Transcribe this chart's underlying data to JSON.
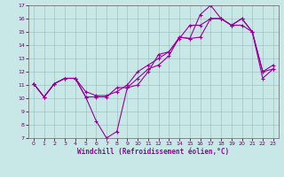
{
  "xlabel": "Windchill (Refroidissement éolien,°C)",
  "bg_color": "#c8e8e8",
  "line_color": "#990099",
  "xlim": [
    -0.5,
    23.5
  ],
  "ylim": [
    7,
    17
  ],
  "yticks": [
    7,
    8,
    9,
    10,
    11,
    12,
    13,
    14,
    15,
    16,
    17
  ],
  "xticks": [
    0,
    1,
    2,
    3,
    4,
    5,
    6,
    7,
    8,
    9,
    10,
    11,
    12,
    13,
    14,
    15,
    16,
    17,
    18,
    19,
    20,
    21,
    22,
    23
  ],
  "series": [
    {
      "x": [
        0,
        1,
        2,
        3,
        4,
        5,
        6,
        7,
        8,
        9,
        10,
        11,
        12,
        13,
        14,
        15,
        16,
        17,
        18,
        19,
        20,
        21,
        22,
        23
      ],
      "y": [
        11.1,
        10.1,
        11.1,
        11.5,
        11.5,
        10.1,
        8.3,
        7.0,
        7.5,
        10.8,
        11.0,
        12.0,
        13.3,
        13.5,
        14.6,
        14.5,
        16.3,
        17.0,
        16.0,
        15.5,
        16.0,
        15.0,
        11.5,
        12.2
      ]
    },
    {
      "x": [
        0,
        1,
        2,
        3,
        4,
        5,
        6,
        7,
        8,
        9,
        10,
        11,
        12,
        13,
        14,
        15,
        16,
        17,
        18,
        19,
        20,
        21,
        22,
        23
      ],
      "y": [
        11.1,
        10.1,
        11.1,
        11.5,
        11.5,
        10.1,
        10.1,
        10.1,
        10.8,
        10.8,
        11.5,
        12.2,
        12.5,
        13.2,
        14.6,
        14.5,
        14.6,
        16.0,
        16.0,
        15.5,
        16.0,
        15.0,
        12.0,
        12.2
      ]
    },
    {
      "x": [
        0,
        1,
        2,
        3,
        4,
        5,
        6,
        7,
        8,
        9,
        10,
        11,
        12,
        13,
        14,
        15,
        16,
        17,
        18,
        19,
        20,
        21,
        22,
        23
      ],
      "y": [
        11.1,
        10.1,
        11.1,
        11.5,
        11.5,
        10.5,
        10.2,
        10.2,
        10.5,
        11.0,
        12.0,
        12.5,
        13.0,
        13.5,
        14.5,
        15.5,
        15.5,
        16.0,
        16.0,
        15.5,
        15.5,
        15.0,
        12.0,
        12.5
      ]
    }
  ]
}
